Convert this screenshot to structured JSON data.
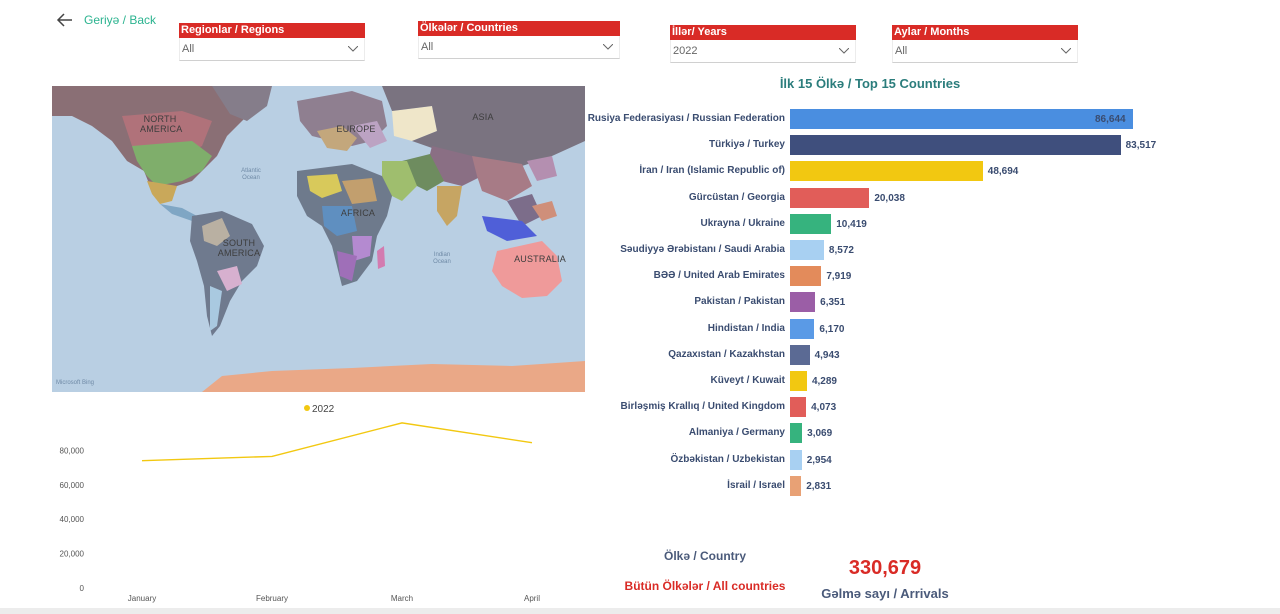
{
  "nav": {
    "back_label": "Geriyə / Back"
  },
  "filters": [
    {
      "label": "Regionlar / Regions",
      "value": "All"
    },
    {
      "label": "Ölkələr / Countries",
      "value": "All"
    },
    {
      "label": "İllər/ Years",
      "value": "2022"
    },
    {
      "label": "Aylar / Months",
      "value": "All"
    }
  ],
  "map": {
    "labels": {
      "north_america": "NORTH\nAMERICA",
      "south_america": "SOUTH\nAMERICA",
      "europe": "EUROPE",
      "asia": "ASIA",
      "africa": "AFRICA",
      "australia": "AUSTRALIA",
      "atlantic": "Atlantic\nOcean",
      "indian": "Indian\nOcean"
    },
    "ocean_color": "#b9cfe3",
    "attribution": "Microsoft Bing"
  },
  "line_chart": {
    "legend": "2022",
    "color": "#f2c811",
    "chart_data": {
      "type": "line",
      "x": [
        "January",
        "February",
        "March",
        "April"
      ],
      "series": [
        {
          "name": "2022",
          "values": [
            74000,
            76500,
            96000,
            84500
          ]
        }
      ],
      "yticks": [
        "0",
        "20,000",
        "40,000",
        "60,000",
        "80,000"
      ],
      "ylim": [
        0,
        100000
      ]
    }
  },
  "bar_chart": {
    "title": "İlk 15 Ölkə / Top 15 Countries",
    "chart_data": {
      "type": "bar",
      "categories": [
        "Rusiya Federasiyası / Russian Federation",
        "Türkiyə / Turkey",
        "İran / Iran (Islamic Republic of)",
        "Gürcüstan / Georgia",
        "Ukrayna / Ukraine",
        "Səudiyyə Ərəbistanı / Saudi Arabia",
        "BƏƏ / United Arab Emirates",
        "Pakistan / Pakistan",
        "Hindistan / India",
        "Qazaxıstan / Kazakhstan",
        "Küveyt / Kuwait",
        "Birləşmiş Krallıq / United Kingdom",
        "Almaniya / Germany",
        "Özbəkistan / Uzbekistan",
        "İsrail / Israel"
      ],
      "values": [
        86644,
        83517,
        48694,
        20038,
        10419,
        8572,
        7919,
        6351,
        6170,
        4943,
        4289,
        4073,
        3069,
        2954,
        2831
      ],
      "value_labels": [
        "86,644",
        "83,517",
        "48,694",
        "20,038",
        "10,419",
        "8,572",
        "7,919",
        "6,351",
        "6,170",
        "4,943",
        "4,289",
        "4,073",
        "3,069",
        "2,954",
        "2,831"
      ],
      "colors": [
        "#4a8ee0",
        "#3f4f7d",
        "#f2c811",
        "#e15d59",
        "#36b37e",
        "#a8d0f2",
        "#e38b5b",
        "#9b5ea6",
        "#5a9ae6",
        "#5b6a94",
        "#f2c811",
        "#e15d59",
        "#36b37e",
        "#a8d0f2",
        "#e8a175"
      ]
    }
  },
  "cards": {
    "country_label": "Ölkə / Country",
    "country_value": "Bütün Ölkələr / All countries",
    "arrivals_value": "330,679",
    "arrivals_label": "Gəlmə sayı / Arrivals"
  }
}
